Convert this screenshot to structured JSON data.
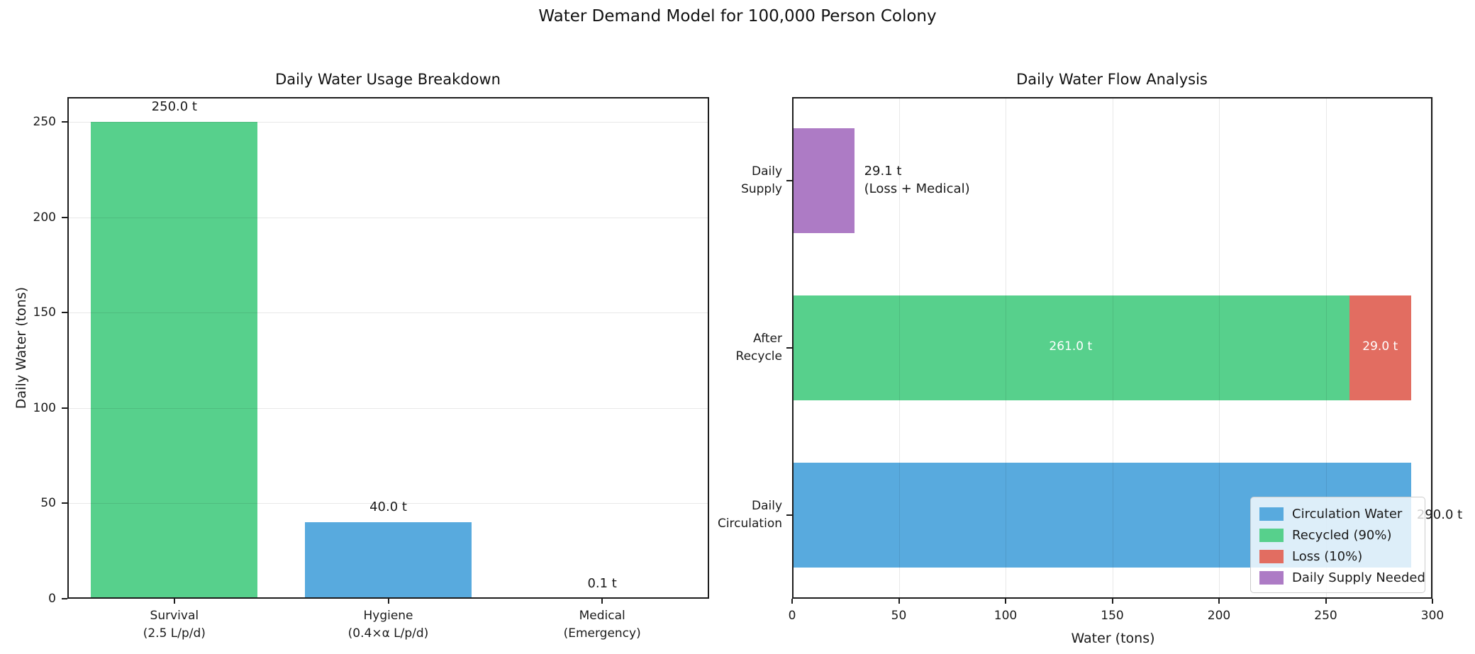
{
  "suptitle": "Water Demand Model for 100,000 Person Colony",
  "colors": {
    "circulation_blue": "#58aade",
    "recycled_green": "#57d08c",
    "loss_red": "#e26d61",
    "supply_purple": "#ad7bc5"
  },
  "chart_data": [
    {
      "type": "bar",
      "title": "Daily Water Usage Breakdown",
      "xlabel": "",
      "ylabel": "Daily Water (tons)",
      "ylim": [
        0,
        263
      ],
      "yticks": [
        0,
        50,
        100,
        150,
        200,
        250
      ],
      "grid": "horizontal",
      "categories": [
        [
          "Survival",
          "(2.5 L/p/d)"
        ],
        [
          "Hygiene",
          "(0.4×α L/p/d)"
        ],
        [
          "Medical",
          "(Emergency)"
        ]
      ],
      "values": [
        250.0,
        40.0,
        0.1
      ],
      "bar_labels": [
        "250.0 t",
        "40.0 t",
        "0.1 t"
      ],
      "bar_colors": [
        "recycled_green",
        "circulation_blue",
        "loss_red"
      ]
    },
    {
      "type": "barh-stacked",
      "title": "Daily Water Flow Analysis",
      "xlabel": "Water (tons)",
      "ylabel": "",
      "xlim": [
        0,
        300
      ],
      "xticks": [
        0,
        50,
        100,
        150,
        200,
        250,
        300
      ],
      "grid": "vertical",
      "categories": [
        [
          "Daily",
          "Supply"
        ],
        [
          "After",
          "Recycle"
        ],
        [
          "Daily",
          "Circulation"
        ]
      ],
      "rows": [
        {
          "segments": [
            {
              "name": "Daily Supply Needed",
              "value": 29.1,
              "color": "supply_purple"
            }
          ],
          "annotation": [
            "29.1 t",
            "(Loss + Medical)"
          ]
        },
        {
          "segments": [
            {
              "name": "Recycled (90%)",
              "value": 261.0,
              "color": "recycled_green",
              "label": "261.0 t"
            },
            {
              "name": "Loss (10%)",
              "value": 29.0,
              "color": "loss_red",
              "label": "29.0 t"
            }
          ]
        },
        {
          "segments": [
            {
              "name": "Circulation Water",
              "value": 290.0,
              "color": "circulation_blue"
            }
          ],
          "end_label": "290.0 t"
        }
      ],
      "legend": [
        {
          "label": "Circulation Water",
          "color": "circulation_blue"
        },
        {
          "label": "Recycled (90%)",
          "color": "recycled_green"
        },
        {
          "label": "Loss (10%)",
          "color": "loss_red"
        },
        {
          "label": "Daily Supply Needed",
          "color": "supply_purple"
        }
      ],
      "legend_position": "lower-right"
    }
  ]
}
